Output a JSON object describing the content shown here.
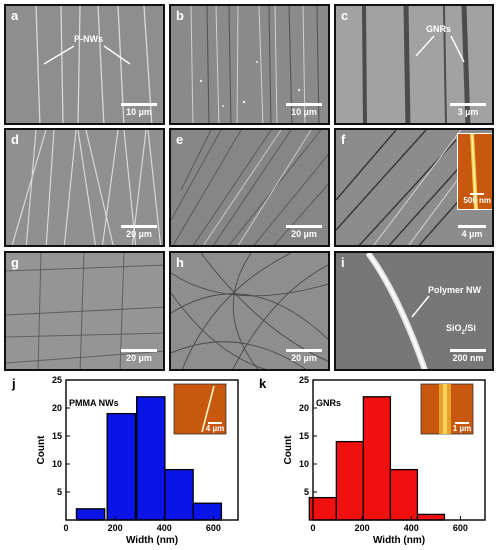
{
  "panels": {
    "a": {
      "label": "a",
      "scale": "10 µm",
      "annotation": "P-NWs"
    },
    "b": {
      "label": "b",
      "scale": "10 µm"
    },
    "c": {
      "label": "c",
      "scale": "3 µm",
      "annotation": "GNRs"
    },
    "d": {
      "label": "d",
      "scale": "20 µm"
    },
    "e": {
      "label": "e",
      "scale": "20 µm"
    },
    "f": {
      "label": "f",
      "scale": "4 µm",
      "inset_scale": "500 nm"
    },
    "g": {
      "label": "g",
      "scale": "20 µm"
    },
    "h": {
      "label": "h",
      "scale": "20 µm"
    },
    "i": {
      "label": "i",
      "scale": "200 nm",
      "annotation": "Polymer NW",
      "substrate_main": "SiO",
      "substrate_sub": "2",
      "substrate_tail": "/Si"
    }
  },
  "chart_data": [
    {
      "panel_label": "j",
      "type": "bar",
      "title": "PMMA NWs",
      "xlabel": "Width (nm)",
      "ylabel": "Count",
      "x_bin_centers": [
        100,
        225,
        345,
        460,
        575
      ],
      "bin_width": 115,
      "values": [
        2,
        19,
        22,
        9,
        3
      ],
      "xlim": [
        0,
        700
      ],
      "ylim": [
        0,
        25
      ],
      "xticks": [
        0,
        200,
        400,
        600
      ],
      "yticks": [
        5,
        10,
        15,
        20,
        25
      ],
      "color": "#0a14e6",
      "inset_scale": "4 µm"
    },
    {
      "panel_label": "k",
      "type": "bar",
      "title": "GNRs",
      "xlabel": "Width (nm)",
      "ylabel": "Count",
      "x_bin_centers": [
        40,
        150,
        260,
        370,
        480
      ],
      "bin_width": 110,
      "values": [
        4,
        14,
        22,
        9,
        1
      ],
      "xlim": [
        0,
        700
      ],
      "ylim": [
        0,
        25
      ],
      "xticks": [
        0,
        200,
        400,
        600
      ],
      "yticks": [
        5,
        10,
        15,
        20,
        25
      ],
      "color": "#f01010",
      "inset_scale": "1 µm"
    }
  ],
  "colors": {
    "sem_gray": "#8a8a8a",
    "afm_orange": "#c8580e"
  }
}
